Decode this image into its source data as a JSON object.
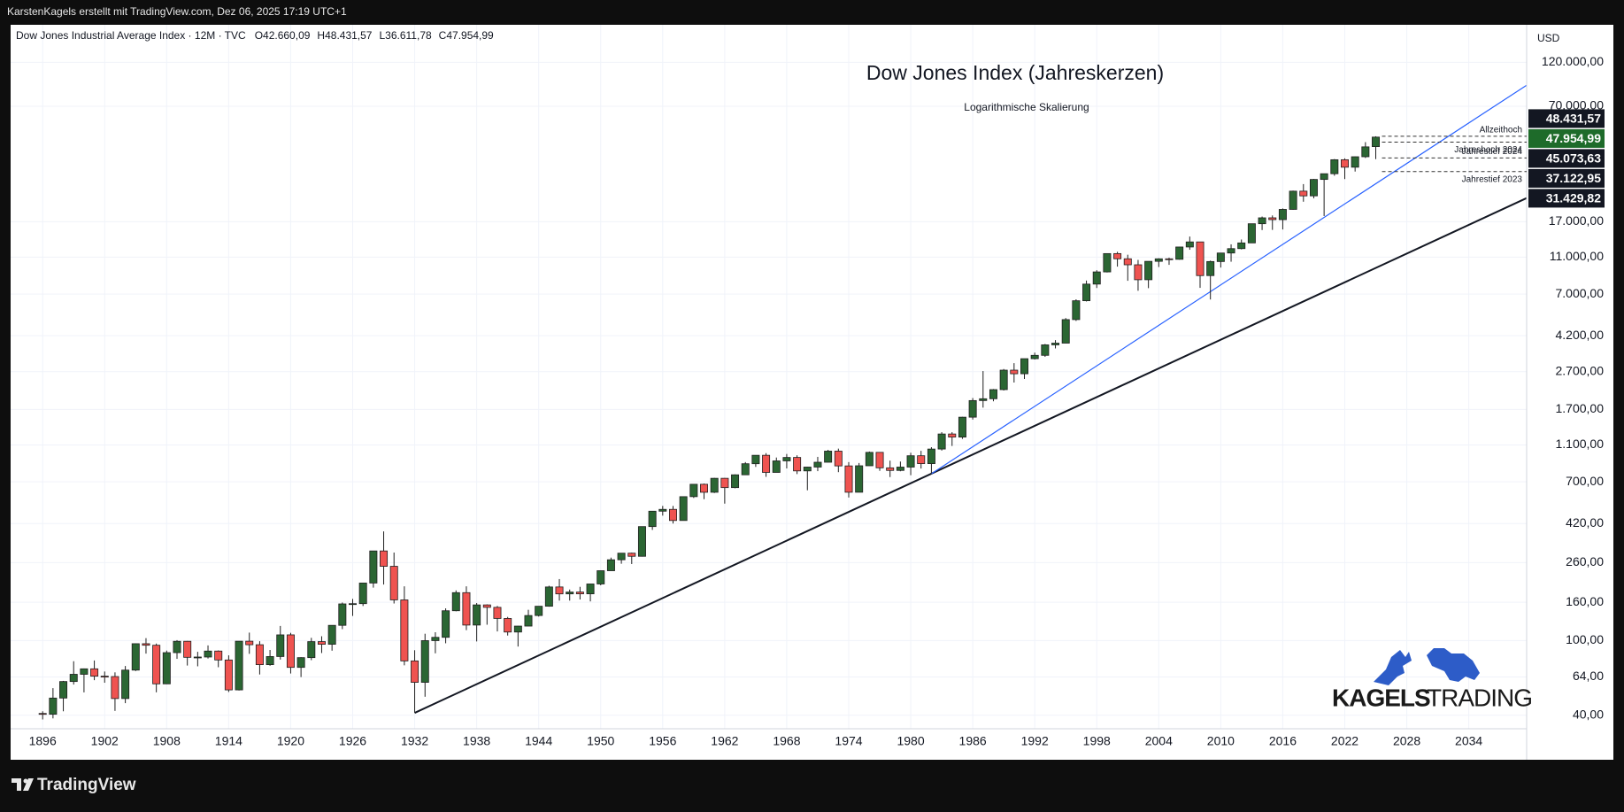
{
  "header": "KarstenKagels erstellt mit TradingView.com, Dez 06, 2025 17:19 UTC+1",
  "footer": "TradingView",
  "watermark": {
    "bold": "KAGELS",
    "light": "TRADING"
  },
  "chart_data": {
    "type": "candlestick",
    "title": "Dow Jones Index (Jahreskerzen)",
    "subtitle": "Logarithmische Skalierung",
    "unit": "USD",
    "symbol": "Dow Jones Industrial Average Index · 12M · TVC",
    "legend": [
      {
        "key": "O",
        "label": "42.660,09"
      },
      {
        "key": "H",
        "label": "48.431,57"
      },
      {
        "key": "L",
        "label": "36.611,78"
      },
      {
        "key": "C",
        "label": "47.954,99"
      }
    ],
    "log_scale": true,
    "grid": true,
    "up_color": "#2b6633",
    "down_color": "#ef5350",
    "xlim": [
      1892.9,
      2039.6
    ],
    "ylim": [
      33.9,
      180000
    ],
    "xticks": [
      1896,
      1902,
      1908,
      1914,
      1920,
      1926,
      1932,
      1938,
      1944,
      1950,
      1956,
      1962,
      1968,
      1974,
      1980,
      1986,
      1992,
      1998,
      2004,
      2010,
      2016,
      2022,
      2028,
      2034
    ],
    "yticks": [
      {
        "value": 40,
        "label": "40,00"
      },
      {
        "value": 64,
        "label": "64,00"
      },
      {
        "value": 100,
        "label": "100,00"
      },
      {
        "value": 160,
        "label": "160,00"
      },
      {
        "value": 260,
        "label": "260,00"
      },
      {
        "value": 420,
        "label": "420,00"
      },
      {
        "value": 700,
        "label": "700,00"
      },
      {
        "value": 1100,
        "label": "1.100,00"
      },
      {
        "value": 1700,
        "label": "1.700,00"
      },
      {
        "value": 2700,
        "label": "2.700,00"
      },
      {
        "value": 4200,
        "label": "4.200,00"
      },
      {
        "value": 7000,
        "label": "7.000,00"
      },
      {
        "value": 11000,
        "label": "11.000,00"
      },
      {
        "value": 17000,
        "label": "17.000,00"
      },
      {
        "value": 70000,
        "label": "70.000,00"
      },
      {
        "value": 120000,
        "label": "120.000,00"
      }
    ],
    "x": [
      1896,
      1897,
      1898,
      1899,
      1900,
      1901,
      1902,
      1903,
      1904,
      1905,
      1906,
      1907,
      1908,
      1909,
      1910,
      1911,
      1912,
      1913,
      1914,
      1915,
      1916,
      1917,
      1918,
      1919,
      1920,
      1921,
      1922,
      1923,
      1924,
      1925,
      1926,
      1927,
      1928,
      1929,
      1930,
      1931,
      1932,
      1933,
      1934,
      1935,
      1936,
      1937,
      1938,
      1939,
      1940,
      1941,
      1942,
      1943,
      1944,
      1945,
      1946,
      1947,
      1948,
      1949,
      1950,
      1951,
      1952,
      1953,
      1954,
      1955,
      1956,
      1957,
      1958,
      1959,
      1960,
      1961,
      1962,
      1963,
      1964,
      1965,
      1966,
      1967,
      1968,
      1969,
      1970,
      1971,
      1972,
      1973,
      1974,
      1975,
      1976,
      1977,
      1978,
      1979,
      1980,
      1981,
      1982,
      1983,
      1984,
      1985,
      1986,
      1987,
      1988,
      1989,
      1990,
      1991,
      1992,
      1993,
      1994,
      1995,
      1996,
      1997,
      1998,
      1999,
      2000,
      2001,
      2002,
      2003,
      2004,
      2005,
      2006,
      2007,
      2008,
      2009,
      2010,
      2011,
      2012,
      2013,
      2014,
      2015,
      2016,
      2017,
      2018,
      2019,
      2020,
      2021,
      2022,
      2023,
      2024,
      2025
    ],
    "open": [
      40.9,
      40.5,
      49.4,
      60.5,
      66.1,
      70.7,
      64.6,
      64.3,
      49.1,
      69.6,
      96.2,
      94.4,
      58.8,
      86.2,
      99.1,
      81.4,
      81.7,
      87.9,
      78.8,
      54.6,
      99.2,
      95,
      74.4,
      82.2,
      107.2,
      71.95,
      81.1,
      98.7,
      95.5,
      120.5,
      156.7,
      157.2,
      202.4,
      300,
      248.5,
      164.6,
      77.9,
      59.9,
      99.9,
      104,
      144.1,
      179.9,
      120.9,
      154.8,
      150.2,
      131.1,
      111,
      119.4,
      135.9,
      152.3,
      192.9,
      177.2,
      181.2,
      177.3,
      200.1,
      235.4,
      269.2,
      291.9,
      280.9,
      404.4,
      488.4,
      499.5,
      435.7,
      583.7,
      679.4,
      615.9,
      731.1,
      652.1,
      763,
      874.1,
      969.3,
      785.7,
      905.1,
      943.8,
      800.4,
      838.9,
      890.2,
      1020,
      850.9,
      616.2,
      852.4,
      1004.7,
      831.2,
      805,
      838.7,
      964,
      875,
      1046.5,
      1258.6,
      1211.6,
      1546.7,
      1896,
      1938.8,
      2168.6,
      2753.2,
      2633.7,
      3168.8,
      3301.1,
      3754.1,
      3834.4,
      5117.1,
      6448.3,
      7908.3,
      9181.4,
      11497.1,
      10786.9,
      10021.5,
      8341.6,
      10453.9,
      10783,
      10717.5,
      12463.2,
      13264.8,
      8776.4,
      10428,
      11577.5,
      12217.6,
      13104.1,
      16576.7,
      17823.1,
      17425,
      19762.6,
      24719.2,
      23327.5,
      28538.4,
      30606.5,
      36338.3,
      33147.3,
      37689.5,
      42660.09
    ],
    "high": [
      42,
      55.8,
      60.97,
      77.6,
      71,
      78.3,
      68.4,
      67.7,
      73.2,
      96.6,
      103,
      96.4,
      88.4,
      100.5,
      99.5,
      87.1,
      94.2,
      88.6,
      83.4,
      99.2,
      110.2,
      99.2,
      89.1,
      119.6,
      109.9,
      81.5,
      103.4,
      105.4,
      120.5,
      159.4,
      166.6,
      202.4,
      300,
      381.2,
      294.1,
      194.4,
      88.8,
      108.7,
      110.7,
      148.4,
      184.9,
      194.4,
      158.4,
      155.9,
      152.8,
      133.6,
      119.7,
      145.8,
      152.5,
      195.8,
      212.5,
      186.9,
      193.2,
      200.5,
      235.5,
      276.4,
      292,
      293.8,
      404.4,
      488.4,
      521,
      520.8,
      583.7,
      679.4,
      685.5,
      734.9,
      734,
      767.2,
      891.7,
      969.3,
      995.2,
      943.1,
      985.2,
      968.9,
      842,
      950.8,
      1036.3,
      1051.7,
      891.7,
      881.8,
      1014.8,
      1005,
      907.7,
      897.6,
      1000.2,
      1024,
      1070.6,
      1287.2,
      1286.6,
      1553.1,
      1955.6,
      2722.4,
      2183.5,
      2791.4,
      2999.8,
      3168.8,
      3413.2,
      3794.3,
      3978.4,
      5216.5,
      6560.9,
      8259.3,
      9374.3,
      11497.1,
      11750.3,
      11337.9,
      10635.3,
      10453.9,
      10854.5,
      10940.5,
      12510.6,
      14164.5,
      13279.5,
      10548.5,
      11585.4,
      12876,
      13661.7,
      16588.3,
      18103.5,
      18351.4,
      19987.6,
      24876.1,
      26951.8,
      28701.7,
      30637.5,
      36636,
      36952.7,
      37778.9,
      45073.63,
      48431.57
    ],
    "low": [
      38,
      38.5,
      42,
      58.3,
      52.96,
      61.5,
      59.6,
      42.2,
      46.4,
      68.8,
      85.2,
      53,
      58.6,
      79.9,
      73.6,
      72.9,
      80.2,
      72.1,
      53.2,
      54.2,
      84.96,
      65.95,
      73.4,
      79.2,
      66.75,
      63.9,
      78.6,
      85.8,
      88.3,
      115,
      135.2,
      152.7,
      191.3,
      198.7,
      157.5,
      73.8,
      41.2,
      50.2,
      85.5,
      96.7,
      143.1,
      113.6,
      98.9,
      121.4,
      111.8,
      106.3,
      92.9,
      119.3,
      134.2,
      151.4,
      163.1,
      163.2,
      165.4,
      161.6,
      196.8,
      239,
      256.4,
      255.5,
      279.9,
      388.2,
      462.4,
      419.8,
      436.9,
      574.5,
      566,
      610.3,
      535.8,
      646.8,
      766.1,
      840.6,
      744.3,
      786.4,
      825.1,
      769.9,
      631.2,
      797.97,
      889.2,
      788.3,
      577.6,
      616,
      852,
      800.9,
      742.1,
      796.7,
      759.1,
      824,
      776.9,
      1027,
      1086.6,
      1184.96,
      1502.3,
      1738.7,
      1879.1,
      2144.6,
      2365.1,
      2470.3,
      3136.6,
      3241.9,
      3593.4,
      3832.1,
      5032.9,
      6391.7,
      7539.1,
      9120.7,
      9796,
      8235.8,
      7286.3,
      7524.1,
      9749.99,
      10012.4,
      10667.4,
      12050.4,
      7552.3,
      6547,
      9686.5,
      10404.5,
      12101.5,
      13104,
      15340.7,
      15370.3,
      15450.6,
      19677.9,
      21712.5,
      22638.4,
      18213.7,
      29856.3,
      28660.9,
      31429.82,
      37122.95,
      36611.78
    ],
    "close": [
      40.5,
      49.4,
      60.5,
      66.1,
      70.7,
      64.6,
      64.3,
      49.1,
      69.6,
      96.2,
      94.4,
      58.8,
      86.2,
      99.1,
      81.4,
      81.7,
      87.9,
      78.8,
      54.6,
      99.2,
      95,
      74.4,
      82.2,
      107.2,
      71.95,
      81.1,
      98.7,
      95.5,
      120.5,
      156.7,
      157.2,
      202.4,
      300,
      248.5,
      164.6,
      77.9,
      59.9,
      99.9,
      104,
      144.1,
      179.9,
      120.9,
      154.8,
      150.2,
      131.1,
      111,
      119.4,
      135.9,
      152.3,
      192.9,
      177.2,
      181.2,
      177.3,
      200.1,
      235.4,
      269.2,
      291.9,
      280.9,
      404.4,
      488.4,
      499.5,
      435.7,
      583.7,
      679.4,
      615.9,
      731.1,
      652.1,
      763,
      874.1,
      969.3,
      785.7,
      905.1,
      943.8,
      800.4,
      838.9,
      890.2,
      1020,
      850.9,
      616.2,
      852.4,
      1004.7,
      831.2,
      805,
      838.7,
      964,
      875,
      1046.5,
      1258.6,
      1211.6,
      1546.7,
      1896,
      1938.8,
      2168.6,
      2753.2,
      2633.7,
      3168.8,
      3301.1,
      3754.1,
      3834.4,
      5117.1,
      6448.3,
      7908.3,
      9181.4,
      11497.1,
      10786.9,
      10021.5,
      8341.6,
      10453.9,
      10783,
      10717.5,
      12463.2,
      13264.8,
      8776.4,
      10428,
      11577.5,
      12217.6,
      13104.1,
      16576.7,
      17823.1,
      17425,
      19762.6,
      24719.2,
      23327.5,
      28538.4,
      30606.5,
      36338.3,
      33147.3,
      37689.5,
      42544.2,
      47954.99
    ],
    "price_levels": [
      {
        "value": 48431.57,
        "label": "48.431,57",
        "note": "Allzeithoch",
        "color": "#131722"
      },
      {
        "value": 47954.99,
        "label": "47.954,99",
        "color": "#1e6b2a"
      },
      {
        "value": 45073.63,
        "label": "45.073,63",
        "note": "Jahreshoch 2024",
        "color": "#131722"
      },
      {
        "value": 37122.95,
        "label": "37.122,95",
        "note": "Jahrestief 2024",
        "color": "#131722"
      },
      {
        "value": 31429.82,
        "label": "31.429,82",
        "note": "Jahrestief 2023",
        "color": "#131722"
      }
    ],
    "trendlines": [
      {
        "color": "#131722",
        "x": [
          1932,
          2039.6
        ],
        "y": [
          41.2,
          22700
        ]
      },
      {
        "color": "#2962ff",
        "x": [
          1982,
          2039.6
        ],
        "y": [
          773,
          90600
        ]
      }
    ]
  }
}
